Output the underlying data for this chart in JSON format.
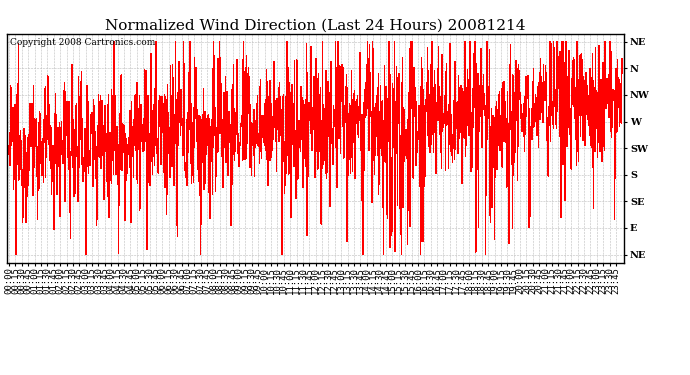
{
  "title": "Normalized Wind Direction (Last 24 Hours) 20081214",
  "copyright_text": "Copyright 2008 Cartronics.com",
  "line_color": "red",
  "background_color": "white",
  "grid_color": "#bbbbbb",
  "ytick_labels": [
    "NE",
    "N",
    "NW",
    "W",
    "SW",
    "S",
    "SE",
    "E",
    "NE"
  ],
  "ytick_values": [
    8,
    7,
    6,
    5,
    4,
    3,
    2,
    1,
    0
  ],
  "ylim": [
    -0.3,
    8.3
  ],
  "title_fontsize": 11,
  "tick_fontsize": 7,
  "copyright_fontsize": 6.5,
  "n_points": 1440,
  "tick_interval_min": 15,
  "data_interval_min": 1
}
